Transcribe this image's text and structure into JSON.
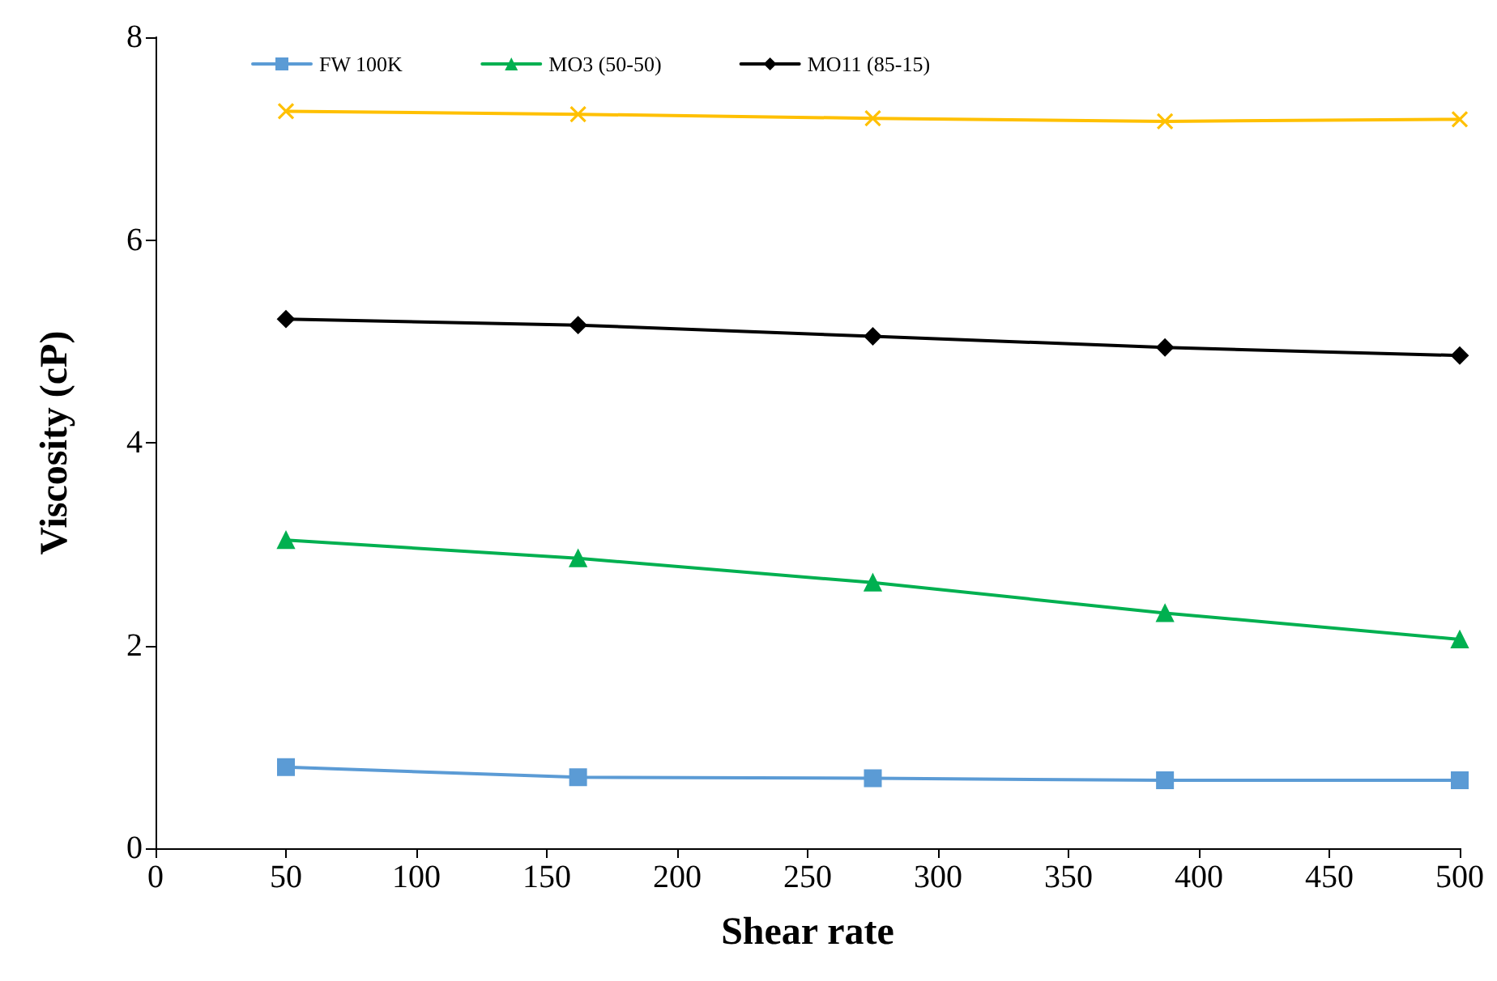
{
  "chart_data": {
    "type": "line",
    "xlabel": "Shear rate",
    "ylabel": "Viscosity (cP)",
    "xlim": [
      0,
      500
    ],
    "xticks": [
      0,
      50,
      100,
      150,
      200,
      250,
      300,
      350,
      400,
      450,
      500
    ],
    "ylim": [
      0,
      8
    ],
    "yticks": [
      0,
      2,
      4,
      6,
      8
    ],
    "grid": false,
    "legend": "top",
    "series": [
      {
        "name": "FW 100K",
        "color": "#5b9bd5",
        "marker": "square",
        "x": [
          50,
          162,
          275,
          387,
          500
        ],
        "values": [
          0.8,
          0.7,
          0.69,
          0.67,
          0.67
        ]
      },
      {
        "color": "#ffc000",
        "marker": "cross",
        "x": [
          50,
          162,
          275,
          387,
          500
        ],
        "values": [
          7.27,
          7.24,
          7.2,
          7.17,
          7.19
        ]
      },
      {
        "name": "MO3 (50-50)",
        "color": "#00b050",
        "marker": "triangle",
        "x": [
          50,
          162,
          275,
          387,
          500
        ],
        "values": [
          3.04,
          2.86,
          2.62,
          2.32,
          2.06
        ]
      },
      {
        "name": "MO11 (85-15)",
        "color": "#000000",
        "marker": "diamond",
        "x": [
          50,
          162,
          275,
          387,
          500
        ],
        "values": [
          5.22,
          5.16,
          5.05,
          4.94,
          4.86
        ]
      }
    ]
  }
}
